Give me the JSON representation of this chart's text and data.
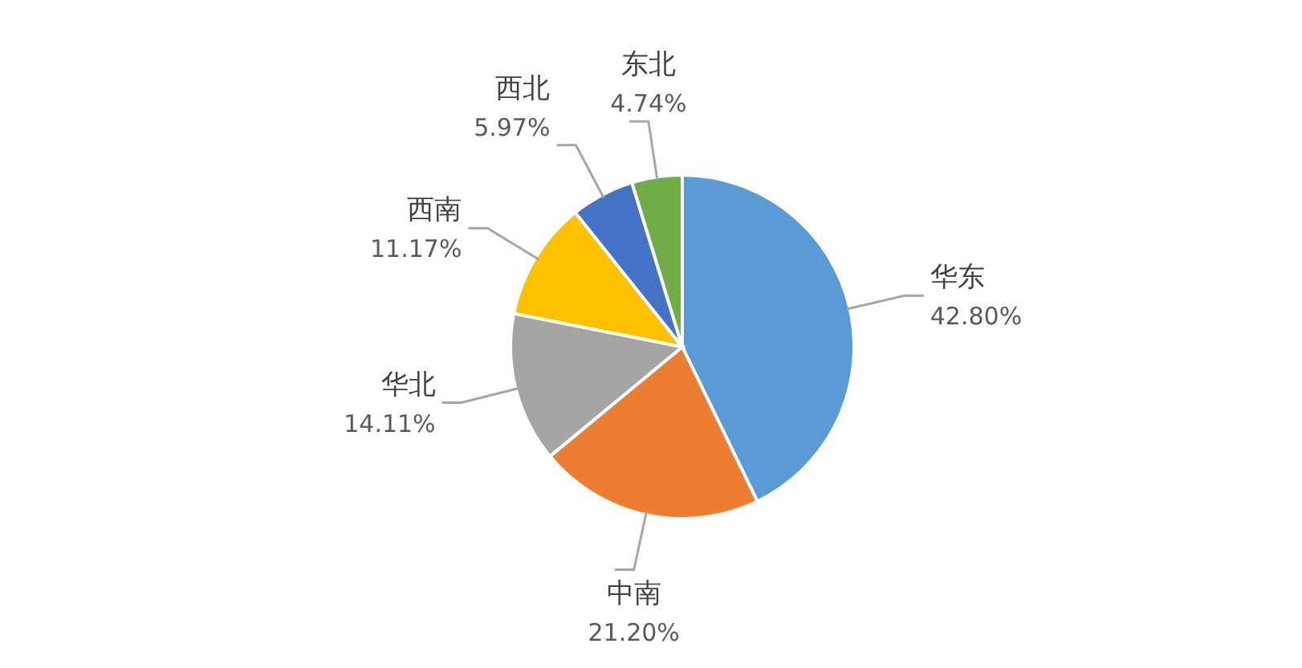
{
  "chart_data": {
    "type": "pie",
    "categories": [
      "华东",
      "中南",
      "华北",
      "西南",
      "西北",
      "东北"
    ],
    "values": [
      42.8,
      21.2,
      14.11,
      11.17,
      5.97,
      4.74
    ],
    "value_labels": [
      "42.80%",
      "21.20%",
      "14.11%",
      "11.17%",
      "5.97%",
      "4.74%"
    ],
    "colors": [
      "#5b9bd5",
      "#ed7d31",
      "#a5a5a5",
      "#ffc000",
      "#4472c4",
      "#70ad47"
    ]
  }
}
